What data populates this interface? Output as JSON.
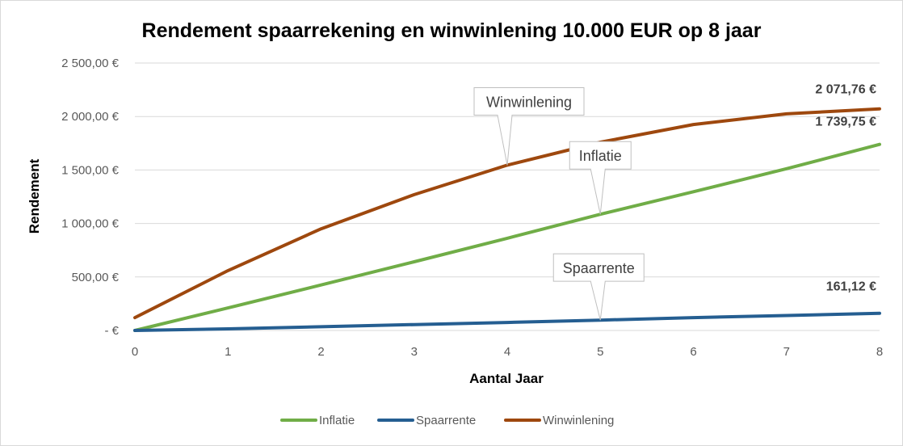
{
  "chart_data": {
    "type": "line",
    "title": "Rendement spaarrekening en winwinlening 10.000 EUR op 8 jaar",
    "xlabel": "Aantal Jaar",
    "ylabel": "Rendement",
    "x": [
      0,
      1,
      2,
      3,
      4,
      5,
      6,
      7,
      8
    ],
    "xlim": [
      0,
      8
    ],
    "ylim": [
      0,
      2500
    ],
    "yticks": [
      0,
      500,
      1000,
      1500,
      2000,
      2500
    ],
    "ytick_labels": [
      "-  €",
      "500,00 €",
      "1 000,00 €",
      "1 500,00 €",
      "2 000,00 €",
      "2 500,00 €"
    ],
    "xtick_labels": [
      "0",
      "1",
      "2",
      "3",
      "4",
      "5",
      "6",
      "7",
      "8"
    ],
    "grid": true,
    "legend_position": "bottom",
    "series": [
      {
        "name": "Inflatie",
        "color": "#70ad47",
        "values": [
          0,
          211,
          425,
          642,
          862,
          1086,
          1297,
          1512,
          1739.75
        ],
        "end_label": "1 739,75 €",
        "callout": {
          "text": "Inflatie",
          "at_x": 5
        }
      },
      {
        "name": "Spaarrente",
        "color": "#255e91",
        "values": [
          0,
          15,
          35,
          55,
          75,
          97,
          120,
          140,
          161.12
        ],
        "end_label": "161,12 €",
        "callout": {
          "text": "Spaarrente",
          "at_x": 5
        }
      },
      {
        "name": "Winwinlening",
        "color": "#9e480e",
        "values": [
          120,
          560,
          950,
          1270,
          1545,
          1760,
          1925,
          2025,
          2071.76
        ],
        "end_label": "2 071,76 €",
        "callout": {
          "text": "Winwinlening",
          "at_x": 4
        }
      }
    ]
  }
}
